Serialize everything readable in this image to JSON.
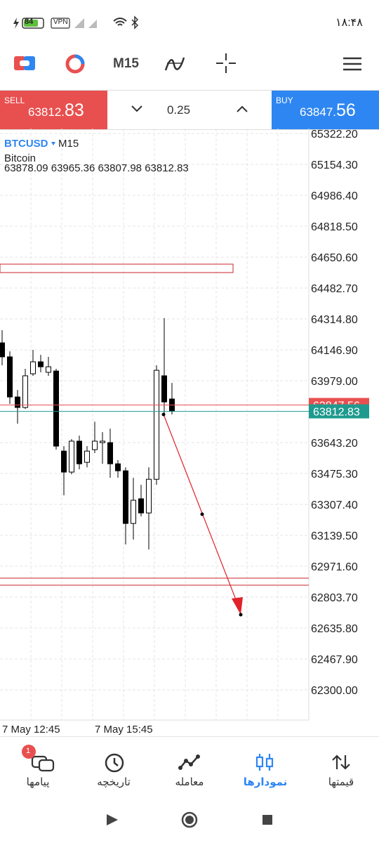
{
  "status_bar": {
    "time": "۱۸:۴۸",
    "battery": "84",
    "vpn": "VPN"
  },
  "toolbar": {
    "timeframe": "M15"
  },
  "trade_panel": {
    "sell": {
      "label": "SELL",
      "price_main": "63812.",
      "price_big": "83"
    },
    "lot": "0.25",
    "buy": {
      "label": "BUY",
      "price_main": "63847.",
      "price_big": "56"
    }
  },
  "chart": {
    "symbol": "BTCUSD",
    "timeframe": "M15",
    "name": "Bitcoin",
    "ohlc": "63878.09 63965.36 63807.98 63812.83",
    "ylim": [
      62136,
      65349
    ],
    "yticks": [
      {
        "value": 65322.2,
        "label": "65322.20"
      },
      {
        "value": 65154.3,
        "label": "65154.30"
      },
      {
        "value": 64986.4,
        "label": "64986.40"
      },
      {
        "value": 64818.5,
        "label": "64818.50"
      },
      {
        "value": 64650.6,
        "label": "64650.60"
      },
      {
        "value": 64482.7,
        "label": "64482.70"
      },
      {
        "value": 64314.8,
        "label": "64314.80"
      },
      {
        "value": 64146.9,
        "label": "64146.90"
      },
      {
        "value": 63979,
        "label": "63979.00"
      },
      {
        "value": 63643.2,
        "label": "63643.20"
      },
      {
        "value": 63475.3,
        "label": "63475.30"
      },
      {
        "value": 63307.4,
        "label": "63307.40"
      },
      {
        "value": 63139.5,
        "label": "63139.50"
      },
      {
        "value": 62971.6,
        "label": "62971.60"
      },
      {
        "value": 62803.7,
        "label": "62803.70"
      },
      {
        "value": 62635.8,
        "label": "62635.80"
      },
      {
        "value": 62467.9,
        "label": "62467.90"
      },
      {
        "value": 62300,
        "label": "62300.00"
      }
    ],
    "grid": true,
    "x_labels": [
      "7 May 12:45",
      "7 May 15:45"
    ],
    "ask": 63847.56,
    "bid": 63812.83,
    "ask_color": "#e8504f",
    "bid_color": "#1f9a8f",
    "bull_color": "#ffffff",
    "bear_color": "#000000",
    "candles": [
      {
        "open": 64185,
        "high": 64254,
        "low": 64063,
        "close": 64109
      },
      {
        "open": 64109,
        "high": 64139,
        "low": 63853,
        "close": 63891
      },
      {
        "open": 63891,
        "high": 63929,
        "low": 63746,
        "close": 63834
      },
      {
        "open": 63834,
        "high": 64044,
        "low": 63826,
        "close": 64006
      },
      {
        "open": 64017,
        "high": 64147,
        "low": 64006,
        "close": 64082
      },
      {
        "open": 64082,
        "high": 64120,
        "low": 64025,
        "close": 64055
      },
      {
        "open": 64025,
        "high": 64109,
        "low": 64006,
        "close": 64055
      },
      {
        "open": 64032,
        "high": 64044,
        "low": 63605,
        "close": 63624
      },
      {
        "open": 63597,
        "high": 63624,
        "low": 63357,
        "close": 63483
      },
      {
        "open": 63483,
        "high": 63662,
        "low": 63471,
        "close": 63651
      },
      {
        "open": 63651,
        "high": 63681,
        "low": 63498,
        "close": 63528
      },
      {
        "open": 63536,
        "high": 63624,
        "low": 63509,
        "close": 63597
      },
      {
        "open": 63605,
        "high": 63757,
        "low": 63586,
        "close": 63651
      },
      {
        "open": 63643,
        "high": 63700,
        "low": 63528,
        "close": 63651
      },
      {
        "open": 63643,
        "high": 63719,
        "low": 63452,
        "close": 63528
      },
      {
        "open": 63528,
        "high": 63548,
        "low": 63452,
        "close": 63490
      },
      {
        "open": 63490,
        "high": 63509,
        "low": 63090,
        "close": 63204
      },
      {
        "open": 63204,
        "high": 63452,
        "low": 63116,
        "close": 63330
      },
      {
        "open": 63338,
        "high": 63414,
        "low": 63242,
        "close": 63261
      },
      {
        "open": 63261,
        "high": 63509,
        "low": 63063,
        "close": 63444
      },
      {
        "open": 63444,
        "high": 64063,
        "low": 63414,
        "close": 64036
      },
      {
        "open": 64006,
        "high": 64319,
        "low": 63796,
        "close": 63864
      },
      {
        "open": 63880,
        "high": 63967,
        "low": 63796,
        "close": 63812.83
      }
    ]
  },
  "bottom_nav": {
    "badge": "1",
    "items": [
      "پیامها",
      "تاریخچه",
      "معامله",
      "نمودارها",
      "قیمتها"
    ]
  }
}
